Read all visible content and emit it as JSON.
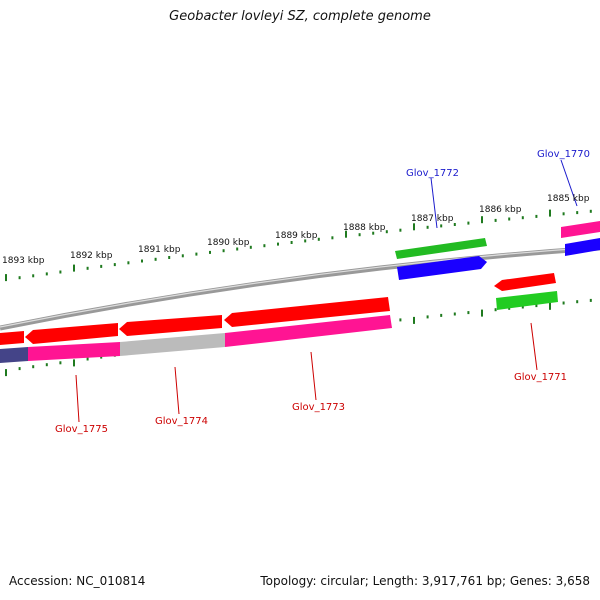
{
  "title": "Geobacter lovleyi SZ, complete genome",
  "accession": "Accession: NC_010814",
  "summary": "Topology: circular; Length: 3,917,761 bp; Genes: 3,658",
  "colors": {
    "red": "#ff0000",
    "magenta": "#ff1493",
    "blue": "#1a00ff",
    "green": "#22cc22",
    "gray": "#bbbbbb",
    "navy": "#444488",
    "backbone": "#888888",
    "tick": "#1f7a1f",
    "label_red": "#cc0000",
    "label_blue": "#1a1acc"
  },
  "ticks": [
    "1893 kbp",
    "1892 kbp",
    "1891 kbp",
    "1890 kbp",
    "1889 kbp",
    "1888 kbp",
    "1887 kbp",
    "1886 kbp",
    "1885 kbp"
  ],
  "genes": [
    {
      "name": "Glov_1775",
      "color": "label_red"
    },
    {
      "name": "Glov_1774",
      "color": "label_red"
    },
    {
      "name": "Glov_1773",
      "color": "label_red"
    },
    {
      "name": "Glov_1772",
      "color": "label_blue"
    },
    {
      "name": "Glov_1771",
      "color": "label_red"
    },
    {
      "name": "Glov_1770",
      "color": "label_blue"
    }
  ]
}
